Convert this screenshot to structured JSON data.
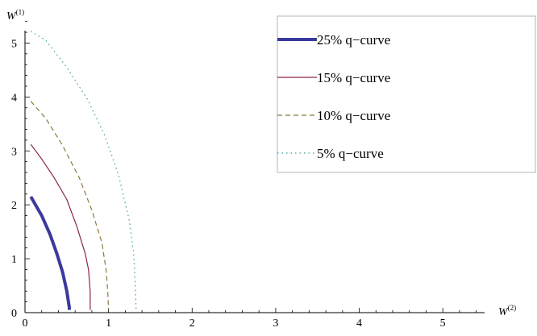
{
  "chart_data": {
    "type": "line",
    "title": "",
    "xlabel": "W",
    "xlabel_superscript": "(2)",
    "ylabel": "W",
    "ylabel_superscript": "(1)",
    "xlim": [
      0,
      5.5
    ],
    "ylim": [
      0,
      5.5
    ],
    "x_ticks": [
      "0",
      "1",
      "2",
      "3",
      "4",
      "5"
    ],
    "y_ticks": [
      "0",
      "1",
      "2",
      "3",
      "4",
      "5"
    ],
    "grid": false,
    "legend_position": "top-right",
    "series": [
      {
        "name": "25% q−curve",
        "color": "#3a3a9e",
        "dash": "solid",
        "width": "thick",
        "x": [
          0.07,
          0.2,
          0.3,
          0.38,
          0.45,
          0.5,
          0.52,
          0.53,
          0.53
        ],
        "y": [
          2.15,
          1.8,
          1.45,
          1.1,
          0.75,
          0.4,
          0.2,
          0.1,
          0.05
        ]
      },
      {
        "name": "15% q−curve",
        "color": "#8b2252",
        "dash": "solid",
        "width": "thin",
        "x": [
          0.07,
          0.2,
          0.35,
          0.5,
          0.62,
          0.72,
          0.76,
          0.78,
          0.78
        ],
        "y": [
          3.12,
          2.85,
          2.5,
          2.1,
          1.6,
          1.1,
          0.8,
          0.4,
          0.05
        ]
      },
      {
        "name": "10% q−curve",
        "color": "#8b7a3a",
        "dash": "dashed",
        "width": "thin",
        "x": [
          0.07,
          0.25,
          0.45,
          0.65,
          0.8,
          0.92,
          0.97,
          0.99,
          1.0
        ],
        "y": [
          3.92,
          3.6,
          3.1,
          2.5,
          1.9,
          1.3,
          0.8,
          0.4,
          0.05
        ]
      },
      {
        "name": "5% q−curve",
        "color": "#3a9e9e",
        "dash": "dotted",
        "width": "thin",
        "x": [
          0.07,
          0.25,
          0.5,
          0.75,
          0.95,
          1.12,
          1.25,
          1.3,
          1.32,
          1.33
        ],
        "y": [
          5.22,
          5.05,
          4.55,
          3.95,
          3.3,
          2.55,
          1.7,
          1.1,
          0.5,
          0.05
        ]
      }
    ]
  }
}
